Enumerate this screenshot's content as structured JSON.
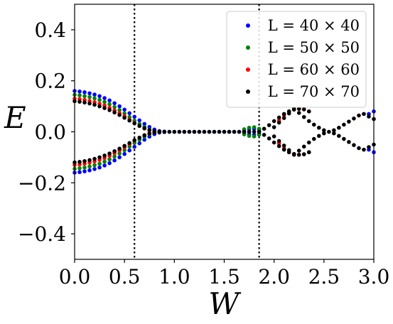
{
  "chart_data": {
    "type": "scatter",
    "xlabel": "W",
    "ylabel": "E",
    "xlim": [
      0.0,
      3.0
    ],
    "ylim": [
      -0.5,
      0.5
    ],
    "x_ticks": [
      0.0,
      0.5,
      1.0,
      1.5,
      2.0,
      2.5,
      3.0
    ],
    "x_tick_labels": [
      "0.0",
      "0.5",
      "1.0",
      "1.5",
      "2.0",
      "2.5",
      "3.0"
    ],
    "y_ticks": [
      -0.4,
      -0.2,
      0.0,
      0.2,
      0.4
    ],
    "y_tick_labels": [
      "−0.4",
      "−0.2",
      "0.0",
      "0.2",
      "0.4"
    ],
    "vertical_lines": [
      0.6,
      1.85
    ],
    "grid": false,
    "legend_position": "top-right",
    "series": [
      {
        "name": "L = 40 × 40",
        "color": "#0000ff",
        "points": [
          [
            0.0,
            0.16
          ],
          [
            0.05,
            0.158
          ],
          [
            0.1,
            0.155
          ],
          [
            0.15,
            0.151
          ],
          [
            0.2,
            0.146
          ],
          [
            0.25,
            0.14
          ],
          [
            0.3,
            0.132
          ],
          [
            0.35,
            0.123
          ],
          [
            0.4,
            0.112
          ],
          [
            0.45,
            0.1
          ],
          [
            0.5,
            0.087
          ],
          [
            0.55,
            0.073
          ],
          [
            0.6,
            0.059
          ],
          [
            0.65,
            0.045
          ],
          [
            0.7,
            0.031
          ],
          [
            0.75,
            0.019
          ],
          [
            0.8,
            0.009
          ],
          [
            0.85,
            0.003
          ],
          [
            0.9,
            0.001
          ],
          [
            0.95,
            0.0
          ],
          [
            1.0,
            0.0
          ],
          [
            1.05,
            0.0
          ],
          [
            1.1,
            0.0
          ],
          [
            1.15,
            0.0
          ],
          [
            1.2,
            0.0
          ],
          [
            1.25,
            0.0
          ],
          [
            1.3,
            0.0
          ],
          [
            1.35,
            0.0
          ],
          [
            1.4,
            0.0
          ],
          [
            1.45,
            0.0
          ],
          [
            1.5,
            0.0
          ],
          [
            1.55,
            0.0
          ],
          [
            1.6,
            0.0
          ],
          [
            1.65,
            0.0
          ],
          [
            1.7,
            0.005
          ],
          [
            1.75,
            0.01
          ],
          [
            1.8,
            0.012
          ],
          [
            1.85,
            0.008
          ],
          [
            2.95,
            0.07
          ],
          [
            3.0,
            0.08
          ],
          [
            0.0,
            -0.16
          ],
          [
            0.05,
            -0.158
          ],
          [
            0.1,
            -0.155
          ],
          [
            0.15,
            -0.151
          ],
          [
            0.2,
            -0.146
          ],
          [
            0.25,
            -0.14
          ],
          [
            0.3,
            -0.132
          ],
          [
            0.35,
            -0.123
          ],
          [
            0.4,
            -0.112
          ],
          [
            0.45,
            -0.1
          ],
          [
            0.5,
            -0.087
          ],
          [
            0.55,
            -0.073
          ],
          [
            0.6,
            -0.059
          ],
          [
            0.65,
            -0.045
          ],
          [
            0.7,
            -0.031
          ],
          [
            0.75,
            -0.019
          ],
          [
            0.8,
            -0.009
          ],
          [
            0.85,
            -0.003
          ],
          [
            0.9,
            -0.001
          ],
          [
            1.7,
            -0.005
          ],
          [
            1.75,
            -0.01
          ],
          [
            1.8,
            -0.012
          ],
          [
            1.85,
            -0.008
          ],
          [
            2.95,
            -0.07
          ],
          [
            3.0,
            -0.08
          ]
        ]
      },
      {
        "name": "L = 50 × 50",
        "color": "#008000",
        "points": [
          [
            0.0,
            0.145
          ],
          [
            0.05,
            0.143
          ],
          [
            0.1,
            0.14
          ],
          [
            0.15,
            0.136
          ],
          [
            0.2,
            0.131
          ],
          [
            0.25,
            0.125
          ],
          [
            0.3,
            0.117
          ],
          [
            0.35,
            0.108
          ],
          [
            0.4,
            0.097
          ],
          [
            0.45,
            0.085
          ],
          [
            0.5,
            0.072
          ],
          [
            0.55,
            0.058
          ],
          [
            0.6,
            0.044
          ],
          [
            0.65,
            0.031
          ],
          [
            0.7,
            0.019
          ],
          [
            0.75,
            0.009
          ],
          [
            0.8,
            0.003
          ],
          [
            0.85,
            0.001
          ],
          [
            1.7,
            0.01
          ],
          [
            1.75,
            0.016
          ],
          [
            1.8,
            0.018
          ],
          [
            1.85,
            0.012
          ],
          [
            0.0,
            -0.145
          ],
          [
            0.05,
            -0.143
          ],
          [
            0.1,
            -0.14
          ],
          [
            0.15,
            -0.136
          ],
          [
            0.2,
            -0.131
          ],
          [
            0.25,
            -0.125
          ],
          [
            0.3,
            -0.117
          ],
          [
            0.35,
            -0.108
          ],
          [
            0.4,
            -0.097
          ],
          [
            0.45,
            -0.085
          ],
          [
            0.5,
            -0.072
          ],
          [
            0.55,
            -0.058
          ],
          [
            0.6,
            -0.044
          ],
          [
            0.65,
            -0.031
          ],
          [
            0.7,
            -0.019
          ],
          [
            0.75,
            -0.009
          ],
          [
            0.8,
            -0.003
          ],
          [
            0.85,
            -0.001
          ],
          [
            1.7,
            -0.01
          ],
          [
            1.75,
            -0.016
          ],
          [
            1.8,
            -0.018
          ],
          [
            1.85,
            -0.012
          ]
        ]
      },
      {
        "name": "L = 60 × 60",
        "color": "#ff0000",
        "points": [
          [
            0.0,
            0.13
          ],
          [
            0.05,
            0.128
          ],
          [
            0.1,
            0.125
          ],
          [
            0.15,
            0.121
          ],
          [
            0.2,
            0.116
          ],
          [
            0.25,
            0.11
          ],
          [
            0.3,
            0.103
          ],
          [
            0.35,
            0.094
          ],
          [
            0.4,
            0.084
          ],
          [
            0.45,
            0.073
          ],
          [
            0.5,
            0.061
          ],
          [
            0.55,
            0.048
          ],
          [
            0.6,
            0.035
          ],
          [
            0.65,
            0.023
          ],
          [
            0.7,
            0.013
          ],
          [
            0.75,
            0.006
          ],
          [
            0.8,
            0.002
          ],
          [
            2.05,
            0.045
          ],
          [
            2.1,
            0.065
          ],
          [
            2.15,
            0.08
          ],
          [
            2.2,
            0.088
          ],
          [
            2.25,
            0.09
          ],
          [
            2.3,
            0.088
          ],
          [
            2.35,
            0.08
          ],
          [
            0.0,
            -0.13
          ],
          [
            0.05,
            -0.128
          ],
          [
            0.1,
            -0.125
          ],
          [
            0.15,
            -0.121
          ],
          [
            0.2,
            -0.116
          ],
          [
            0.25,
            -0.11
          ],
          [
            0.3,
            -0.103
          ],
          [
            0.35,
            -0.094
          ],
          [
            0.4,
            -0.084
          ],
          [
            0.45,
            -0.073
          ],
          [
            0.5,
            -0.061
          ],
          [
            0.55,
            -0.048
          ],
          [
            0.6,
            -0.035
          ],
          [
            0.65,
            -0.023
          ],
          [
            0.7,
            -0.013
          ],
          [
            0.75,
            -0.006
          ],
          [
            0.8,
            -0.002
          ],
          [
            2.05,
            -0.045
          ],
          [
            2.1,
            -0.065
          ],
          [
            2.15,
            -0.08
          ],
          [
            2.2,
            -0.088
          ],
          [
            2.25,
            -0.09
          ],
          [
            2.3,
            -0.088
          ],
          [
            2.35,
            -0.08
          ]
        ]
      },
      {
        "name": "L = 70 × 70",
        "color": "#000000",
        "points": [
          [
            0.0,
            0.12
          ],
          [
            0.05,
            0.118
          ],
          [
            0.1,
            0.115
          ],
          [
            0.15,
            0.111
          ],
          [
            0.2,
            0.106
          ],
          [
            0.25,
            0.1
          ],
          [
            0.3,
            0.093
          ],
          [
            0.35,
            0.085
          ],
          [
            0.4,
            0.076
          ],
          [
            0.45,
            0.066
          ],
          [
            0.5,
            0.055
          ],
          [
            0.55,
            0.044
          ],
          [
            0.6,
            0.033
          ],
          [
            0.65,
            0.023
          ],
          [
            0.7,
            0.014
          ],
          [
            0.75,
            0.007
          ],
          [
            0.8,
            0.003
          ],
          [
            0.85,
            0.001
          ],
          [
            0.9,
            0.0
          ],
          [
            0.95,
            0.0
          ],
          [
            1.0,
            0.0
          ],
          [
            1.05,
            0.0
          ],
          [
            1.1,
            0.0
          ],
          [
            1.15,
            0.0
          ],
          [
            1.2,
            0.0
          ],
          [
            1.25,
            0.0
          ],
          [
            1.3,
            0.0
          ],
          [
            1.35,
            0.0
          ],
          [
            1.4,
            0.0
          ],
          [
            1.45,
            0.0
          ],
          [
            1.5,
            0.0
          ],
          [
            1.55,
            0.0
          ],
          [
            1.6,
            0.0
          ],
          [
            1.65,
            0.0
          ],
          [
            1.7,
            0.0
          ],
          [
            1.75,
            0.0
          ],
          [
            1.8,
            0.0
          ],
          [
            1.85,
            0.0
          ],
          [
            1.9,
            0.012
          ],
          [
            1.95,
            0.026
          ],
          [
            2.0,
            0.042
          ],
          [
            2.05,
            0.056
          ],
          [
            2.1,
            0.07
          ],
          [
            2.15,
            0.08
          ],
          [
            2.2,
            0.087
          ],
          [
            2.25,
            0.09
          ],
          [
            2.3,
            0.088
          ],
          [
            2.35,
            0.08
          ],
          [
            2.0,
            0.018
          ],
          [
            2.05,
            0.036
          ],
          [
            2.1,
            0.054
          ],
          [
            2.15,
            0.072
          ],
          [
            2.2,
            0.09
          ],
          [
            2.25,
            0.074
          ],
          [
            2.3,
            0.058
          ],
          [
            2.35,
            0.042
          ],
          [
            2.4,
            0.028
          ],
          [
            2.45,
            0.016
          ],
          [
            2.5,
            0.006
          ],
          [
            2.55,
            0.0
          ],
          [
            2.6,
            0.006
          ],
          [
            2.65,
            0.016
          ],
          [
            2.7,
            0.028
          ],
          [
            2.75,
            0.04
          ],
          [
            2.8,
            0.052
          ],
          [
            2.85,
            0.064
          ],
          [
            2.9,
            0.07
          ],
          [
            2.95,
            0.06
          ],
          [
            3.0,
            0.05
          ],
          [
            0.0,
            -0.12
          ],
          [
            0.05,
            -0.118
          ],
          [
            0.1,
            -0.115
          ],
          [
            0.15,
            -0.111
          ],
          [
            0.2,
            -0.106
          ],
          [
            0.25,
            -0.1
          ],
          [
            0.3,
            -0.093
          ],
          [
            0.35,
            -0.085
          ],
          [
            0.4,
            -0.076
          ],
          [
            0.45,
            -0.066
          ],
          [
            0.5,
            -0.055
          ],
          [
            0.55,
            -0.044
          ],
          [
            0.6,
            -0.033
          ],
          [
            0.65,
            -0.023
          ],
          [
            0.7,
            -0.014
          ],
          [
            0.75,
            -0.007
          ],
          [
            0.8,
            -0.003
          ],
          [
            0.85,
            -0.001
          ],
          [
            1.9,
            -0.012
          ],
          [
            1.95,
            -0.026
          ],
          [
            2.0,
            -0.042
          ],
          [
            2.05,
            -0.056
          ],
          [
            2.1,
            -0.07
          ],
          [
            2.15,
            -0.08
          ],
          [
            2.2,
            -0.087
          ],
          [
            2.25,
            -0.09
          ],
          [
            2.3,
            -0.088
          ],
          [
            2.35,
            -0.08
          ],
          [
            2.0,
            -0.018
          ],
          [
            2.05,
            -0.036
          ],
          [
            2.1,
            -0.054
          ],
          [
            2.15,
            -0.072
          ],
          [
            2.2,
            -0.09
          ],
          [
            2.25,
            -0.074
          ],
          [
            2.3,
            -0.058
          ],
          [
            2.35,
            -0.042
          ],
          [
            2.4,
            -0.028
          ],
          [
            2.45,
            -0.016
          ],
          [
            2.5,
            -0.006
          ],
          [
            2.6,
            -0.006
          ],
          [
            2.65,
            -0.016
          ],
          [
            2.7,
            -0.028
          ],
          [
            2.75,
            -0.04
          ],
          [
            2.8,
            -0.052
          ],
          [
            2.85,
            -0.064
          ],
          [
            2.9,
            -0.07
          ],
          [
            2.95,
            -0.06
          ],
          [
            3.0,
            -0.05
          ]
        ]
      }
    ]
  }
}
